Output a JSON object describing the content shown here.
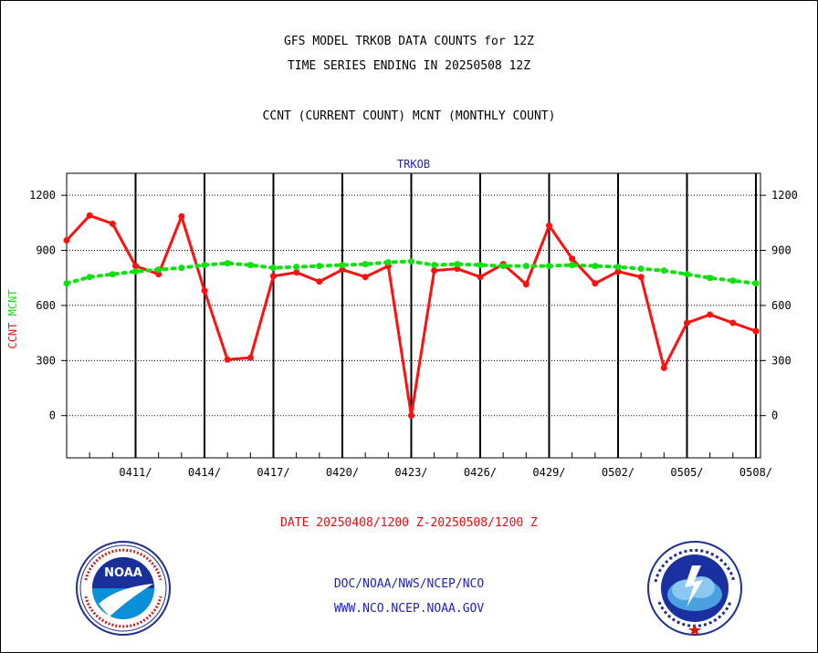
{
  "header": {
    "line1": "GFS MODEL TRKOB DATA COUNTS for 12Z",
    "line2": "TIME SERIES ENDING IN 20250508 12Z",
    "line3": "CCNT (CURRENT COUNT) MCNT (MONTHLY COUNT)"
  },
  "footer": {
    "date_range": "DATE 20250408/1200 Z-20250508/1200 Z",
    "org": "DOC/NOAA/NWS/NCEP/NCO",
    "url": "WWW.NCO.NCEP.NOAA.GOV"
  },
  "logos": {
    "left": "noaa-logo",
    "right": "national-weather-service-logo"
  },
  "colors": {
    "ccnt": "#ff1010",
    "mcnt": "#10e010",
    "axis_text": "#000000",
    "title_blue": "#1f1fbf"
  },
  "chart_data": {
    "type": "line",
    "title": "TRKOB",
    "ylabel_left": [
      "CCNT",
      "MCNT"
    ],
    "ylim": [
      -230,
      1320
    ],
    "yticks": [
      0,
      300,
      600,
      900,
      1200
    ],
    "xlim": [
      0,
      30.2
    ],
    "x_tick_labels": [
      "0411/",
      "0414/",
      "0417/",
      "0420/",
      "0423/",
      "0426/",
      "0429/",
      "0502/",
      "0505/",
      "0508/"
    ],
    "x_tick_positions": [
      3,
      6,
      9,
      12,
      15,
      18,
      21,
      24,
      27,
      30
    ],
    "grid": true,
    "series": [
      {
        "name": "CCNT",
        "color": "#ff1010",
        "style": "solid",
        "values": [
          955,
          1090,
          1045,
          815,
          770,
          1085,
          680,
          305,
          315,
          760,
          780,
          730,
          795,
          755,
          815,
          0,
          790,
          800,
          755,
          825,
          715,
          1035,
          855,
          720,
          785,
          755,
          260,
          505,
          550,
          505,
          460
        ]
      },
      {
        "name": "MCNT",
        "color": "#10e010",
        "style": "dotted",
        "values": [
          720,
          755,
          770,
          785,
          795,
          805,
          820,
          830,
          820,
          805,
          810,
          815,
          820,
          825,
          835,
          840,
          820,
          825,
          820,
          815,
          815,
          815,
          820,
          815,
          810,
          800,
          790,
          770,
          750,
          735,
          720
        ]
      }
    ]
  }
}
